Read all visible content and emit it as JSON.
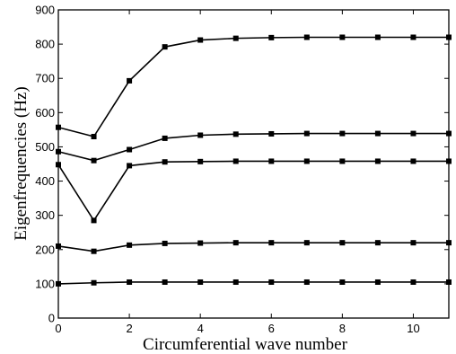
{
  "chart_data": {
    "type": "line",
    "xlabel": "Circumferential wave number",
    "ylabel": "Eigenfrequencies (Hz)",
    "xlim": [
      0,
      11
    ],
    "ylim": [
      0,
      900
    ],
    "x_ticks": [
      "0",
      "2",
      "4",
      "6",
      "8",
      "10"
    ],
    "y_ticks": [
      "0",
      "100",
      "200",
      "300",
      "400",
      "500",
      "600",
      "700",
      "800",
      "900"
    ],
    "grid": false,
    "legend": "none",
    "line_color": "#000000",
    "marker": "square",
    "x": [
      0,
      1,
      2,
      3,
      4,
      5,
      6,
      7,
      8,
      9,
      10,
      11
    ],
    "series": [
      {
        "values": [
          100,
          103,
          105,
          105,
          105,
          105,
          105,
          105,
          105,
          105,
          105,
          105
        ]
      },
      {
        "values": [
          210,
          195,
          213,
          218,
          219,
          220,
          220,
          220,
          220,
          220,
          220,
          220
        ]
      },
      {
        "values": [
          448,
          285,
          445,
          456,
          457,
          458,
          458,
          458,
          458,
          458,
          458,
          458
        ]
      },
      {
        "values": [
          486,
          460,
          492,
          525,
          534,
          537,
          538,
          539,
          539,
          539,
          539,
          539
        ]
      },
      {
        "values": [
          557,
          530,
          693,
          792,
          812,
          817,
          819,
          820,
          820,
          820,
          820,
          820
        ]
      }
    ]
  }
}
